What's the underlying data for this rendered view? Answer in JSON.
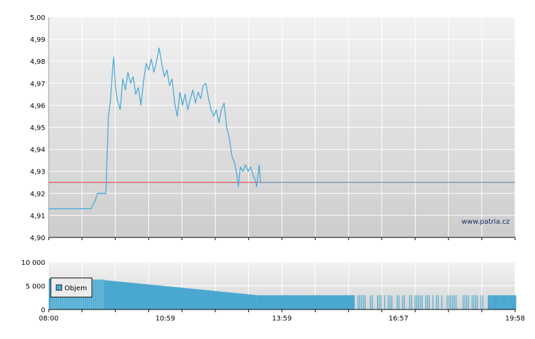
{
  "chart_data": [
    {
      "type": "line",
      "title": "",
      "xlabel": "",
      "ylabel": "",
      "ylim": [
        4.9,
        5.0
      ],
      "y_ticks": [
        "4,90",
        "4,91",
        "4,92",
        "4,93",
        "4,94",
        "4,95",
        "4,96",
        "4,97",
        "4,98",
        "4,99",
        "5,00"
      ],
      "x_range": [
        "08:00",
        "19:58"
      ],
      "grid": true,
      "reference_line": {
        "value": 4.925,
        "color": "#e03030"
      },
      "watermark": "www.patria.cz",
      "series": [
        {
          "color": "#4aa8d8",
          "points": [
            [
              "08:00",
              4.913
            ],
            [
              "08:30",
              4.913
            ],
            [
              "08:50",
              4.913
            ],
            [
              "09:05",
              4.913
            ],
            [
              "09:12",
              4.917
            ],
            [
              "09:15",
              4.92
            ],
            [
              "09:28",
              4.92
            ],
            [
              "09:32",
              4.955
            ],
            [
              "09:35",
              4.962
            ],
            [
              "09:38",
              4.975
            ],
            [
              "09:40",
              4.982
            ],
            [
              "09:43",
              4.968
            ],
            [
              "09:46",
              4.962
            ],
            [
              "09:50",
              4.958
            ],
            [
              "09:54",
              4.972
            ],
            [
              "09:58",
              4.967
            ],
            [
              "10:02",
              4.975
            ],
            [
              "10:06",
              4.97
            ],
            [
              "10:10",
              4.973
            ],
            [
              "10:14",
              4.965
            ],
            [
              "10:18",
              4.968
            ],
            [
              "10:22",
              4.96
            ],
            [
              "10:26",
              4.971
            ],
            [
              "10:30",
              4.979
            ],
            [
              "10:34",
              4.976
            ],
            [
              "10:38",
              4.981
            ],
            [
              "10:42",
              4.975
            ],
            [
              "10:46",
              4.98
            ],
            [
              "10:50",
              4.986
            ],
            [
              "10:54",
              4.979
            ],
            [
              "10:58",
              4.973
            ],
            [
              "11:02",
              4.976
            ],
            [
              "11:06",
              4.969
            ],
            [
              "11:10",
              4.972
            ],
            [
              "11:14",
              4.961
            ],
            [
              "11:18",
              4.955
            ],
            [
              "11:22",
              4.966
            ],
            [
              "11:26",
              4.96
            ],
            [
              "11:30",
              4.965
            ],
            [
              "11:34",
              4.958
            ],
            [
              "11:38",
              4.963
            ],
            [
              "11:42",
              4.967
            ],
            [
              "11:46",
              4.961
            ],
            [
              "11:50",
              4.966
            ],
            [
              "11:54",
              4.963
            ],
            [
              "11:58",
              4.969
            ],
            [
              "12:02",
              4.97
            ],
            [
              "12:06",
              4.963
            ],
            [
              "12:10",
              4.958
            ],
            [
              "12:14",
              4.955
            ],
            [
              "12:18",
              4.958
            ],
            [
              "12:22",
              4.952
            ],
            [
              "12:26",
              4.958
            ],
            [
              "12:30",
              4.961
            ],
            [
              "12:34",
              4.95
            ],
            [
              "12:38",
              4.945
            ],
            [
              "12:42",
              4.937
            ],
            [
              "12:46",
              4.934
            ],
            [
              "12:50",
              4.928
            ],
            [
              "12:52",
              4.923
            ],
            [
              "12:55",
              4.932
            ],
            [
              "12:59",
              4.93
            ],
            [
              "13:03",
              4.933
            ],
            [
              "13:07",
              4.93
            ],
            [
              "13:11",
              4.932
            ],
            [
              "13:15",
              4.928
            ],
            [
              "13:18",
              4.926
            ],
            [
              "13:20",
              4.923
            ],
            [
              "13:22",
              4.928
            ],
            [
              "13:24",
              4.933
            ],
            [
              "13:26",
              4.925
            ]
          ]
        }
      ],
      "continuation_line": {
        "value": 4.925,
        "from": "13:26",
        "to": "19:58",
        "color": "#4aa8d8"
      }
    },
    {
      "type": "bar",
      "title": "",
      "xlabel": "",
      "ylabel": "",
      "ylim": [
        0,
        10000
      ],
      "y_ticks": [
        "0",
        "5 000",
        "10 000"
      ],
      "x_ticks": [
        "08:00",
        "10:59",
        "13:59",
        "16:57",
        "19:58"
      ],
      "legend": {
        "placement": "top-left",
        "entries": [
          "Objem"
        ]
      },
      "series": [
        {
          "name": "Objem",
          "color": "#4aa8d0",
          "segments": [
            {
              "from": "08:00",
              "to": "09:26",
              "start_value": 6500,
              "end_value": 6300
            },
            {
              "from": "09:26",
              "to": "13:20",
              "start_value": 6200,
              "end_value": 3050
            },
            {
              "from": "13:20",
              "to": "15:50",
              "start_value": 3000,
              "end_value": 3000
            }
          ],
          "sparse_bars_range": [
            "15:50",
            "19:58"
          ],
          "sparse_bar_value": 3000
        }
      ]
    }
  ]
}
